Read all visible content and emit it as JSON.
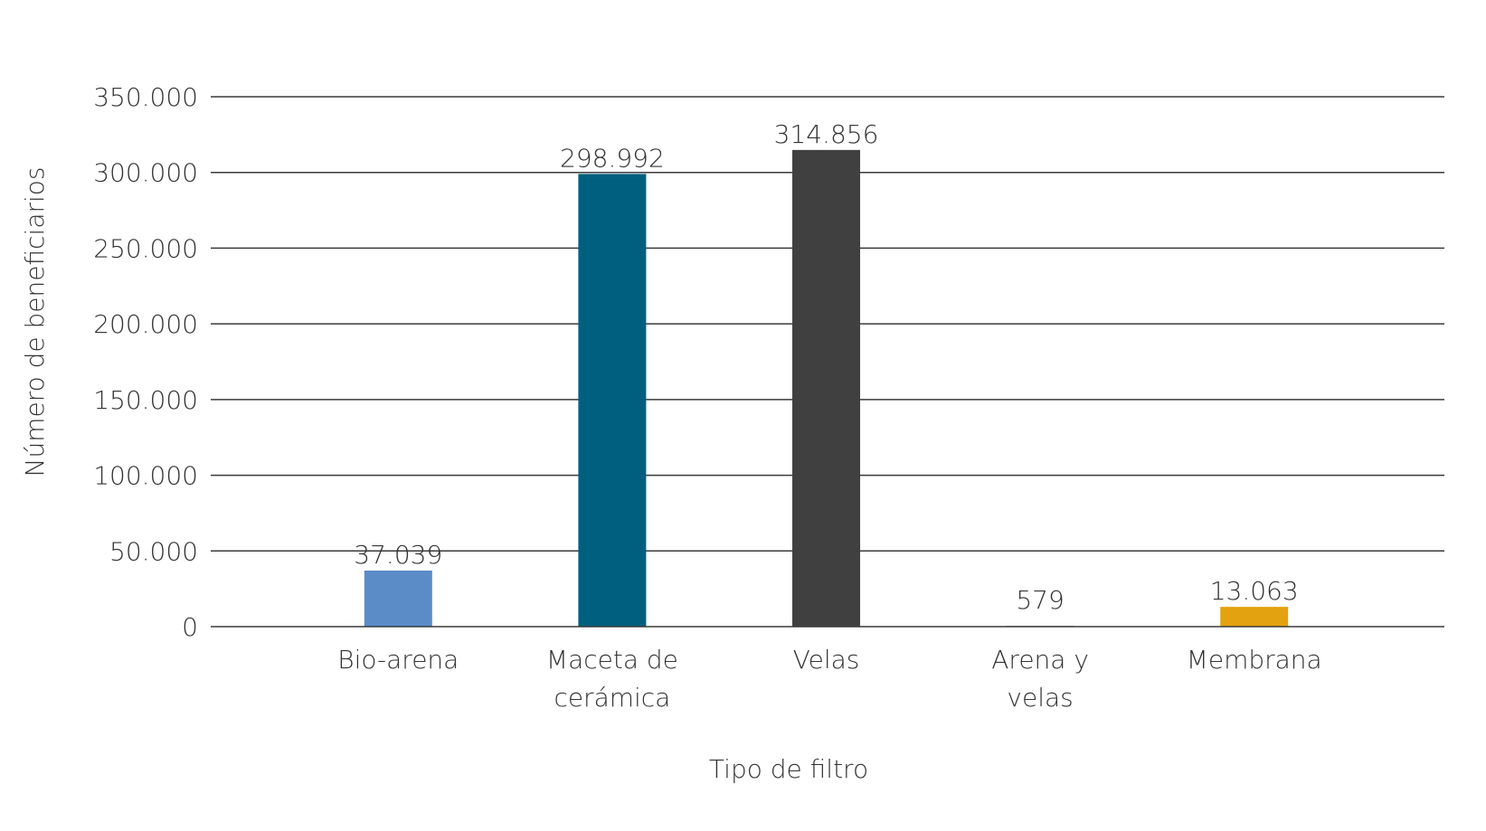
{
  "chart_data": {
    "type": "bar",
    "title": "",
    "xlabel": "Tipo de filtro",
    "ylabel": "Número de beneficiarios",
    "ylim": [
      0,
      350000
    ],
    "y_ticks": [
      {
        "value": 0,
        "label": "0"
      },
      {
        "value": 50000,
        "label": "50.000"
      },
      {
        "value": 100000,
        "label": "100.000"
      },
      {
        "value": 150000,
        "label": "150.000"
      },
      {
        "value": 200000,
        "label": "200.000"
      },
      {
        "value": 250000,
        "label": "250.000"
      },
      {
        "value": 300000,
        "label": "300.000"
      },
      {
        "value": 350000,
        "label": "350.000"
      }
    ],
    "grid": true,
    "legend": "none",
    "categories": [
      [
        "Bio-arena"
      ],
      [
        "Maceta de",
        "cerámica"
      ],
      [
        "Velas"
      ],
      [
        "Arena y",
        "velas"
      ],
      [
        "Membrana"
      ]
    ],
    "values": [
      37039,
      298992,
      314856,
      579,
      13063
    ],
    "value_labels": [
      "37.039",
      "298.992",
      "314.856",
      "579",
      "13.063"
    ],
    "colors": [
      "#5b8cc7",
      "#005f7f",
      "#404040",
      "#a5a5a5",
      "#e3a20f"
    ]
  }
}
